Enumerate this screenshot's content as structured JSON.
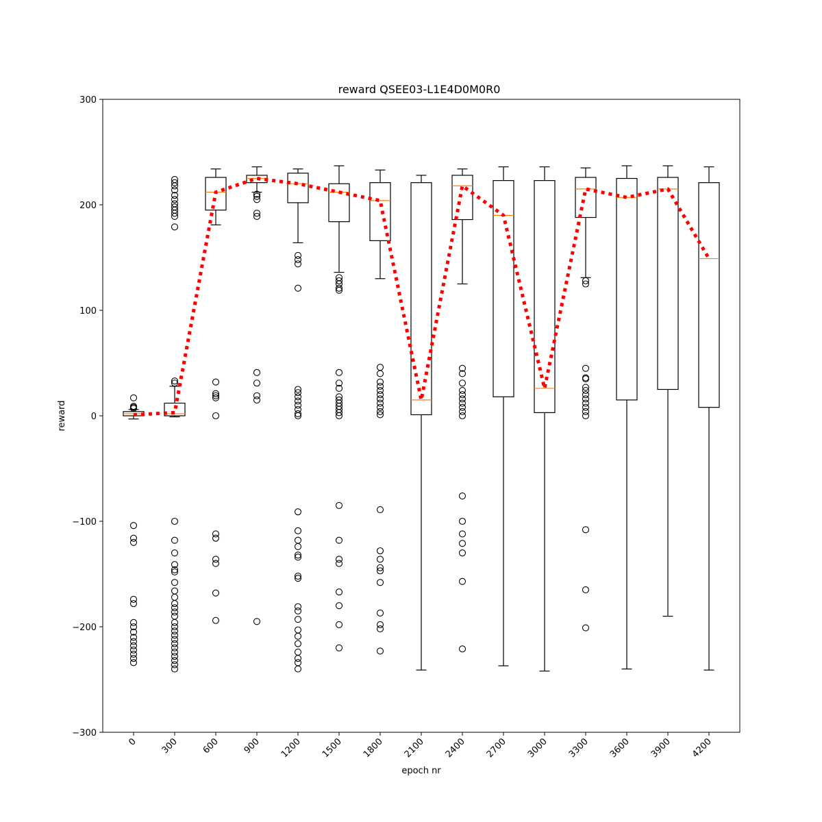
{
  "chart_data": {
    "type": "box",
    "title": "reward QSEE03-L1E4D0M0R0",
    "xlabel": "epoch nr",
    "ylabel": "reward",
    "ylim": [
      -300,
      300
    ],
    "yticks": [
      -300,
      -200,
      -100,
      0,
      100,
      200,
      300
    ],
    "ytick_labels": [
      "−300",
      "−200",
      "−100",
      "0",
      "100",
      "200",
      "300"
    ],
    "categories": [
      "0",
      "300",
      "600",
      "900",
      "1200",
      "1500",
      "1800",
      "2100",
      "2400",
      "2700",
      "3000",
      "3300",
      "3600",
      "3900",
      "4200"
    ],
    "grid": false,
    "boxes": [
      {
        "epoch": "0",
        "whisker_low": -3,
        "q1": 0,
        "median": 2,
        "q3": 4,
        "whisker_high": 6,
        "fliers": [
          17,
          9,
          8,
          7,
          -104,
          -116,
          -120,
          -174,
          -178,
          -196,
          -200,
          -205,
          -210,
          -214,
          -218,
          -222,
          -226,
          -230,
          -234
        ]
      },
      {
        "epoch": "300",
        "whisker_low": -1,
        "q1": 0,
        "median": 2,
        "q3": 12,
        "whisker_high": 28,
        "fliers": [
          224,
          221,
          218,
          214,
          209,
          205,
          201,
          198,
          195,
          192,
          189,
          179,
          33,
          31,
          -100,
          -118,
          -130,
          -141,
          -146,
          -148,
          -158,
          -166,
          -172,
          -178,
          -182,
          -186,
          -190,
          -196,
          -200,
          -204,
          -208,
          -212,
          -216,
          -220,
          -224,
          -228,
          -232,
          -236,
          -240
        ]
      },
      {
        "epoch": "600",
        "whisker_low": 181,
        "q1": 195,
        "median": 212,
        "q3": 226,
        "whisker_high": 234,
        "fliers": [
          32,
          21,
          19,
          17,
          0,
          -112,
          -116,
          -136,
          -140,
          -168,
          -194
        ]
      },
      {
        "epoch": "900",
        "whisker_low": 212,
        "q1": 221,
        "median": 225,
        "q3": 228,
        "whisker_high": 236,
        "fliers": [
          210,
          208,
          205,
          192,
          189,
          41,
          31,
          19,
          15,
          -195
        ]
      },
      {
        "epoch": "1200",
        "whisker_low": 164,
        "q1": 202,
        "median": 220,
        "q3": 230,
        "whisker_high": 234,
        "fliers": [
          152,
          148,
          144,
          121,
          25,
          22,
          18,
          14,
          10,
          6,
          2,
          0,
          -91,
          -109,
          -118,
          -124,
          -132,
          -134,
          -152,
          -154,
          -181,
          -185,
          -193,
          -203,
          -209,
          -216,
          -224,
          -230,
          -234,
          -240
        ]
      },
      {
        "epoch": "1500",
        "whisker_low": 136,
        "q1": 184,
        "median": 212,
        "q3": 220,
        "whisker_high": 237,
        "fliers": [
          131,
          128,
          125,
          121,
          119,
          41,
          31,
          26,
          18,
          15,
          12,
          9,
          6,
          3,
          0,
          -85,
          -118,
          -136,
          -140,
          -167,
          -180,
          -198,
          -220
        ]
      },
      {
        "epoch": "1800",
        "whisker_low": 130,
        "q1": 166,
        "median": 204,
        "q3": 221,
        "whisker_high": 233,
        "fliers": [
          46,
          40,
          32,
          28,
          24,
          20,
          16,
          12,
          8,
          4,
          1,
          -89,
          -128,
          -136,
          -144,
          -147,
          -158,
          -187,
          -198,
          -202,
          -223
        ]
      },
      {
        "epoch": "2100",
        "whisker_low": -241,
        "q1": 1,
        "median": 15,
        "q3": 221,
        "whisker_high": 228,
        "fliers": []
      },
      {
        "epoch": "2400",
        "whisker_low": 125,
        "q1": 186,
        "median": 218,
        "q3": 228,
        "whisker_high": 234,
        "fliers": [
          45,
          40,
          31,
          24,
          20,
          16,
          12,
          8,
          4,
          0,
          -76,
          -100,
          -112,
          -121,
          -130,
          -157,
          -221
        ]
      },
      {
        "epoch": "2700",
        "whisker_low": -237,
        "q1": 18,
        "median": 190,
        "q3": 223,
        "whisker_high": 236,
        "fliers": []
      },
      {
        "epoch": "3000",
        "whisker_low": -242,
        "q1": 3,
        "median": 26,
        "q3": 223,
        "whisker_high": 236,
        "fliers": []
      },
      {
        "epoch": "3300",
        "whisker_low": 131,
        "q1": 188,
        "median": 215,
        "q3": 226,
        "whisker_high": 235,
        "fliers": [
          128,
          125,
          45,
          36,
          35,
          27,
          24,
          20,
          16,
          12,
          8,
          4,
          0,
          -108,
          -165,
          -201
        ]
      },
      {
        "epoch": "3600",
        "whisker_low": -240,
        "q1": 15,
        "median": 207,
        "q3": 225,
        "whisker_high": 237,
        "fliers": []
      },
      {
        "epoch": "3900",
        "whisker_low": -190,
        "q1": 25,
        "median": 215,
        "q3": 226,
        "whisker_high": 237,
        "fliers": []
      },
      {
        "epoch": "4200",
        "whisker_low": -241,
        "q1": 8,
        "median": 149,
        "q3": 221,
        "whisker_high": 236,
        "fliers": []
      }
    ],
    "mean_line": {
      "style": "dotted",
      "values": [
        1,
        3,
        212,
        225,
        220,
        212,
        204,
        15,
        218,
        190,
        26,
        215,
        207,
        215,
        149
      ]
    },
    "colors": {
      "box": "#000000",
      "median": "#ff7f0e",
      "mean_line": "#ff0000",
      "flier": "#000000",
      "background": "#ffffff"
    }
  }
}
